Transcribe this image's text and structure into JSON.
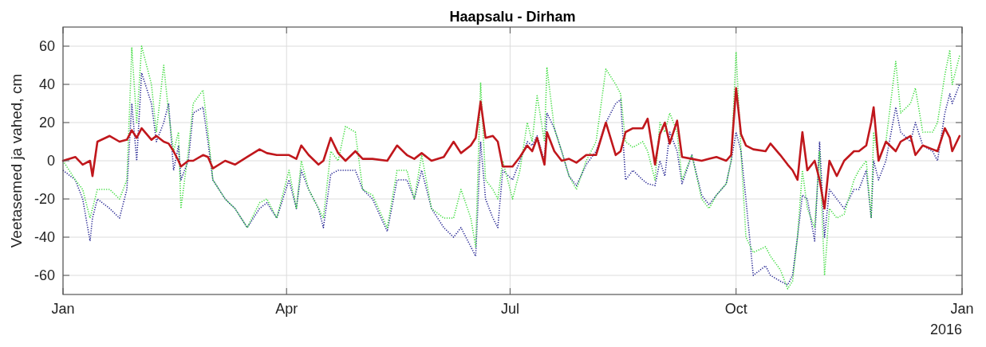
{
  "chart_data": {
    "type": "line",
    "title": "Haapsalu - Dirham",
    "ylabel": "Veetasemed ja vahed, cm",
    "x": [
      "2016-01-01",
      "2016-01-06",
      "2016-01-09",
      "2016-01-12",
      "2016-01-13",
      "2016-01-15",
      "2016-01-20",
      "2016-01-24",
      "2016-01-27",
      "2016-01-29",
      "2016-01-31",
      "2016-02-02",
      "2016-02-06",
      "2016-02-08",
      "2016-02-11",
      "2016-02-13",
      "2016-02-15",
      "2016-02-17",
      "2016-02-18",
      "2016-02-21",
      "2016-02-23",
      "2016-02-27",
      "2016-02-29",
      "2016-03-02",
      "2016-03-07",
      "2016-03-11",
      "2016-03-16",
      "2016-03-21",
      "2016-03-24",
      "2016-03-28",
      "2016-04-02",
      "2016-04-05",
      "2016-04-07",
      "2016-04-10",
      "2016-04-14",
      "2016-04-16",
      "2016-04-19",
      "2016-04-22",
      "2016-04-25",
      "2016-04-29",
      "2016-05-02",
      "2016-05-06",
      "2016-05-12",
      "2016-05-16",
      "2016-05-20",
      "2016-05-23",
      "2016-05-26",
      "2016-05-30",
      "2016-06-04",
      "2016-06-08",
      "2016-06-11",
      "2016-06-15",
      "2016-06-17",
      "2016-06-19",
      "2016-06-21",
      "2016-06-24",
      "2016-06-26",
      "2016-06-28",
      "2016-07-02",
      "2016-07-05",
      "2016-07-08",
      "2016-07-10",
      "2016-07-12",
      "2016-07-15",
      "2016-07-16",
      "2016-07-19",
      "2016-07-22",
      "2016-07-25",
      "2016-07-28",
      "2016-08-01",
      "2016-08-05",
      "2016-08-09",
      "2016-08-13",
      "2016-08-15",
      "2016-08-17",
      "2016-08-20",
      "2016-08-24",
      "2016-08-26",
      "2016-08-29",
      "2016-08-31",
      "2016-09-02",
      "2016-09-04",
      "2016-09-07",
      "2016-09-09",
      "2016-09-13",
      "2016-09-17",
      "2016-09-20",
      "2016-09-23",
      "2016-09-27",
      "2016-09-29",
      "2016-10-01",
      "2016-10-03",
      "2016-10-05",
      "2016-10-08",
      "2016-10-13",
      "2016-10-15",
      "2016-10-19",
      "2016-10-22",
      "2016-10-24",
      "2016-10-26",
      "2016-10-28",
      "2016-10-30",
      "2016-11-02",
      "2016-11-04",
      "2016-11-06",
      "2016-11-08",
      "2016-11-11",
      "2016-11-14",
      "2016-11-18",
      "2016-11-20",
      "2016-11-23",
      "2016-11-25",
      "2016-11-26",
      "2016-11-28",
      "2016-12-01",
      "2016-12-05",
      "2016-12-07",
      "2016-12-11",
      "2016-12-13",
      "2016-12-16",
      "2016-12-20",
      "2016-12-22",
      "2016-12-25",
      "2016-12-27",
      "2016-12-28",
      "2016-12-31"
    ],
    "series": [
      {
        "color": "#1f1f8f",
        "line_style": "dotted",
        "values": [
          -5,
          -10,
          -20,
          -42,
          -30,
          -20,
          -25,
          -30,
          -15,
          30,
          0,
          46,
          30,
          10,
          20,
          30,
          -5,
          8,
          -10,
          0,
          25,
          28,
          10,
          -10,
          -20,
          -25,
          -35,
          -25,
          -22,
          -30,
          -10,
          -25,
          -5,
          -15,
          -25,
          -35,
          -7,
          -5,
          -5,
          -5,
          -15,
          -20,
          -37,
          -10,
          -10,
          -20,
          -5,
          -25,
          -35,
          -40,
          -35,
          -45,
          -50,
          10,
          -20,
          -30,
          -35,
          -5,
          -10,
          0,
          10,
          8,
          13,
          0,
          25,
          17,
          5,
          -8,
          -13,
          -2,
          5,
          20,
          30,
          32,
          -10,
          -5,
          -10,
          -12,
          -13,
          0,
          -8,
          15,
          5,
          -12,
          3,
          -18,
          -23,
          -18,
          -12,
          0,
          15,
          5,
          -20,
          -60,
          -55,
          -60,
          -63,
          -65,
          -60,
          -40,
          -18,
          -20,
          -42,
          10,
          -40,
          -15,
          -20,
          -25,
          -15,
          -15,
          -5,
          -30,
          0,
          -10,
          0,
          28,
          15,
          10,
          20,
          8,
          5,
          0,
          25,
          35,
          30,
          40
        ]
      },
      {
        "color": "#3ddc3d",
        "line_style": "dotted",
        "values": [
          0,
          -10,
          -15,
          -30,
          -25,
          -15,
          -15,
          -20,
          -10,
          59,
          20,
          60,
          40,
          15,
          50,
          25,
          5,
          15,
          -25,
          5,
          30,
          37,
          15,
          -10,
          -20,
          -25,
          -35,
          -22,
          -20,
          -30,
          -5,
          -25,
          0,
          -15,
          -25,
          -30,
          5,
          0,
          18,
          15,
          -15,
          -18,
          -35,
          -5,
          -5,
          -20,
          3,
          -25,
          -30,
          -30,
          -15,
          -30,
          -45,
          41,
          -10,
          -15,
          -20,
          0,
          -20,
          -5,
          20,
          10,
          34,
          10,
          49,
          17,
          5,
          -8,
          -15,
          0,
          10,
          48,
          40,
          35,
          10,
          7,
          10,
          5,
          -10,
          20,
          15,
          25,
          15,
          -10,
          3,
          -20,
          -25,
          -18,
          -12,
          0,
          57,
          5,
          -40,
          -48,
          -45,
          -50,
          -57,
          -67,
          -63,
          -40,
          -5,
          -25,
          -35,
          5,
          -60,
          -25,
          -30,
          -28,
          -10,
          -5,
          0,
          -30,
          15,
          0,
          10,
          52,
          25,
          30,
          38,
          15,
          15,
          20,
          45,
          58,
          40,
          55
        ]
      },
      {
        "color": "#c0171c",
        "line_style": "solid",
        "values": [
          0,
          2,
          -2,
          0,
          -8,
          10,
          13,
          10,
          11,
          16,
          12,
          17,
          11,
          13,
          10,
          9,
          5,
          0,
          -3,
          0,
          0,
          3,
          2,
          -4,
          0,
          -2,
          2,
          6,
          4,
          3,
          3,
          1,
          8,
          3,
          -2,
          0,
          12,
          4,
          0,
          5,
          1,
          1,
          0,
          8,
          3,
          1,
          4,
          0,
          2,
          10,
          4,
          8,
          12,
          31,
          12,
          13,
          10,
          -3,
          -3,
          2,
          8,
          5,
          12,
          -2,
          15,
          5,
          0,
          1,
          -1,
          3,
          3,
          20,
          3,
          5,
          15,
          17,
          17,
          22,
          -2,
          14,
          20,
          9,
          21,
          2,
          1,
          0,
          1,
          2,
          0,
          3,
          38,
          14,
          8,
          6,
          5,
          9,
          3,
          -2,
          -5,
          -10,
          15,
          -5,
          0,
          -10,
          -25,
          0,
          -8,
          0,
          5,
          5,
          8,
          20,
          28,
          0,
          10,
          5,
          10,
          13,
          3,
          8,
          6,
          5,
          17,
          12,
          5,
          13
        ]
      }
    ],
    "xlim": [
      "2016-01-01",
      "2017-01-01"
    ],
    "xticks": [
      {
        "value": "2016-01-01",
        "label": "Jan"
      },
      {
        "value": "2016-04-01",
        "label": "Apr"
      },
      {
        "value": "2016-07-01",
        "label": "Jul"
      },
      {
        "value": "2016-10-01",
        "label": "Oct"
      },
      {
        "value": "2017-01-01",
        "label": "Jan"
      }
    ],
    "ylim": [
      -70,
      70
    ],
    "yticks": [
      -60,
      -40,
      -20,
      0,
      20,
      40,
      60
    ],
    "grid": true,
    "annotations": [
      "2016"
    ]
  }
}
